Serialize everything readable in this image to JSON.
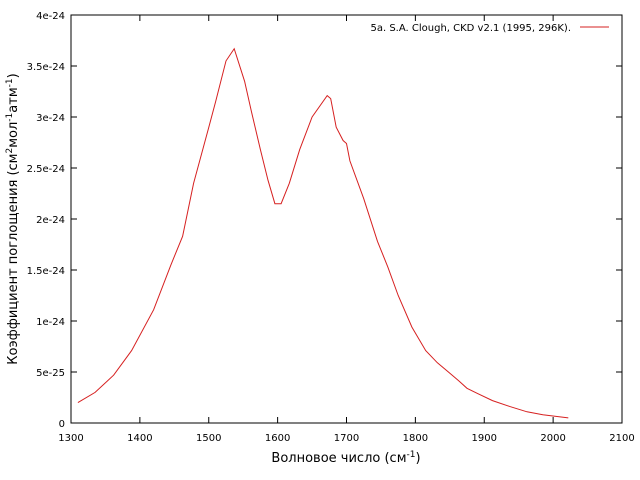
{
  "chart_data": {
    "type": "line",
    "title": "",
    "xlabel": "Волновое число (см",
    "xlabel_sup": "-1",
    "xlabel_end": ")",
    "ylabel": "Коэффициент поглощения (см",
    "ylabel_sup1": "2",
    "ylabel_mid": "мол",
    "ylabel_sup2": "-1",
    "ylabel_mid2": "атм",
    "ylabel_sup3": "-1",
    "ylabel_end": ")",
    "xlim": [
      1300,
      2100
    ],
    "ylim": [
      0,
      4e-24
    ],
    "xticks": [
      1300,
      1400,
      1500,
      1600,
      1700,
      1800,
      1900,
      2000,
      2100
    ],
    "xtick_labels": [
      "1300",
      "1400",
      "1500",
      "1600",
      "1700",
      "1800",
      "1900",
      "2000",
      "2100"
    ],
    "yticks": [
      0,
      5e-25,
      1e-24,
      1.5e-24,
      2e-24,
      2.5e-24,
      3e-24,
      3.5e-24,
      4e-24
    ],
    "ytick_labels": [
      "0",
      "5e-25",
      "1e-24",
      "1.5e-24",
      "2e-24",
      "2.5e-24",
      "3e-24",
      "3.5e-24",
      "4e-24"
    ],
    "legend_position": "top-right",
    "grid": false,
    "series": [
      {
        "name": "5a. S.A. Clough, CKD v2.1 (1995, 296K).",
        "color": "#d62020",
        "x": [
          1310,
          1335,
          1362,
          1388,
          1420,
          1445,
          1462,
          1478,
          1500,
          1510,
          1525,
          1537,
          1552,
          1562,
          1575,
          1586,
          1596,
          1605,
          1617,
          1632,
          1650,
          1672,
          1677,
          1685,
          1695,
          1700,
          1705,
          1725,
          1745,
          1760,
          1775,
          1795,
          1815,
          1832,
          1848,
          1862,
          1875,
          1890,
          1912,
          1938,
          1962,
          1985,
          2022
        ],
        "y": [
          2e-25,
          3e-25,
          4.7e-25,
          7.1e-25,
          1.11e-24,
          1.55e-24,
          1.83e-24,
          2.35e-24,
          2.9e-24,
          3.15e-24,
          3.55e-24,
          3.67e-24,
          3.35e-24,
          3.05e-24,
          2.68e-24,
          2.38e-24,
          2.15e-24,
          2.15e-24,
          2.35e-24,
          2.68e-24,
          3e-24,
          3.21e-24,
          3.18e-24,
          2.9e-24,
          2.77e-24,
          2.74e-24,
          2.57e-24,
          2.2e-24,
          1.78e-24,
          1.53e-24,
          1.25e-24,
          9.4e-25,
          7.1e-25,
          5.9e-25,
          5e-25,
          4.2e-25,
          3.4e-25,
          2.9e-25,
          2.2e-25,
          1.6e-25,
          1.1e-25,
          8e-26,
          5e-26
        ]
      }
    ]
  }
}
